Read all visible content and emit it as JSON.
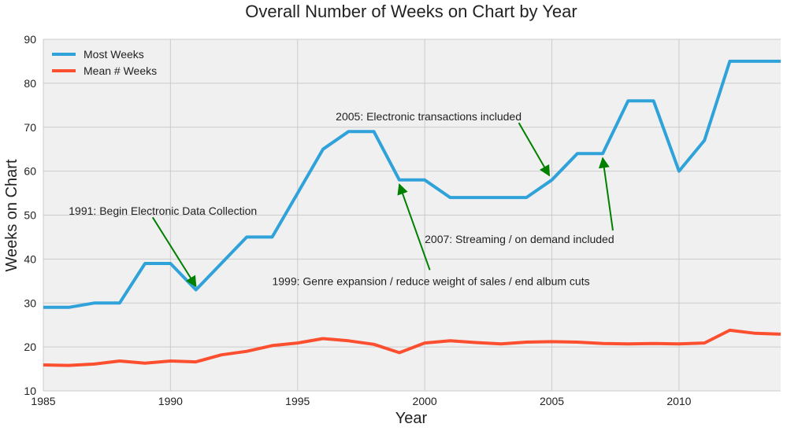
{
  "chart_data": {
    "type": "line",
    "title": "Overall Number of Weeks on Chart by Year",
    "xlabel": "Year",
    "ylabel": "Weeks on Chart",
    "xlim": [
      1985,
      2014
    ],
    "ylim": [
      10,
      90
    ],
    "xticks": [
      1985,
      1990,
      1995,
      2000,
      2005,
      2010
    ],
    "yticks": [
      10,
      20,
      30,
      40,
      50,
      60,
      70,
      80,
      90
    ],
    "grid": true,
    "legend_position": "top-left",
    "background": "#f0f0f0",
    "x": [
      1985,
      1986,
      1987,
      1988,
      1989,
      1990,
      1991,
      1992,
      1993,
      1994,
      1995,
      1996,
      1997,
      1998,
      1999,
      2000,
      2001,
      2002,
      2003,
      2004,
      2005,
      2006,
      2007,
      2008,
      2009,
      2010,
      2011,
      2012,
      2013,
      2014
    ],
    "series": [
      {
        "name": "Most Weeks",
        "color": "#30a2da",
        "values": [
          29,
          29,
          30,
          30,
          39,
          39,
          33,
          39,
          45,
          45,
          55,
          65,
          69,
          69,
          58,
          58,
          54,
          54,
          54,
          54,
          58,
          64,
          64,
          76,
          76,
          60,
          67,
          85,
          85,
          85
        ]
      },
      {
        "name": "Mean # Weeks",
        "color": "#fc4f30",
        "values": [
          15.9,
          15.8,
          16.1,
          16.8,
          16.3,
          16.8,
          16.6,
          18.2,
          19.0,
          20.3,
          20.9,
          21.9,
          21.4,
          20.6,
          18.7,
          20.9,
          21.4,
          21.0,
          20.7,
          21.1,
          21.2,
          21.1,
          20.8,
          20.7,
          20.8,
          20.7,
          20.9,
          23.8,
          23.1,
          22.9
        ]
      }
    ],
    "annotations": [
      {
        "text": "1991: Begin Electronic Data Collection",
        "text_x": 1986,
        "text_y": 51,
        "target_x": 1991,
        "target_y": 33.8,
        "arrow_start_x": 1989.3,
        "arrow_start_y": 49.5
      },
      {
        "text": "1999: Genre expansion / reduce weight of sales / end album cuts",
        "text_x": 1994,
        "text_y": 35,
        "target_x": 1999,
        "target_y": 57,
        "arrow_start_x": 2000.2,
        "arrow_start_y": 37.5
      },
      {
        "text": "2005: Electronic transactions included",
        "text_x": 1996.5,
        "text_y": 72.5,
        "target_x": 2004.9,
        "target_y": 59,
        "arrow_start_x": 2003.7,
        "arrow_start_y": 71
      },
      {
        "text": "2007: Streaming / on demand included",
        "text_x": 2000,
        "text_y": 44.5,
        "target_x": 2007,
        "target_y": 63,
        "arrow_start_x": 2007.4,
        "arrow_start_y": 46.5
      }
    ],
    "annotation_arrow_color": "#008000"
  }
}
